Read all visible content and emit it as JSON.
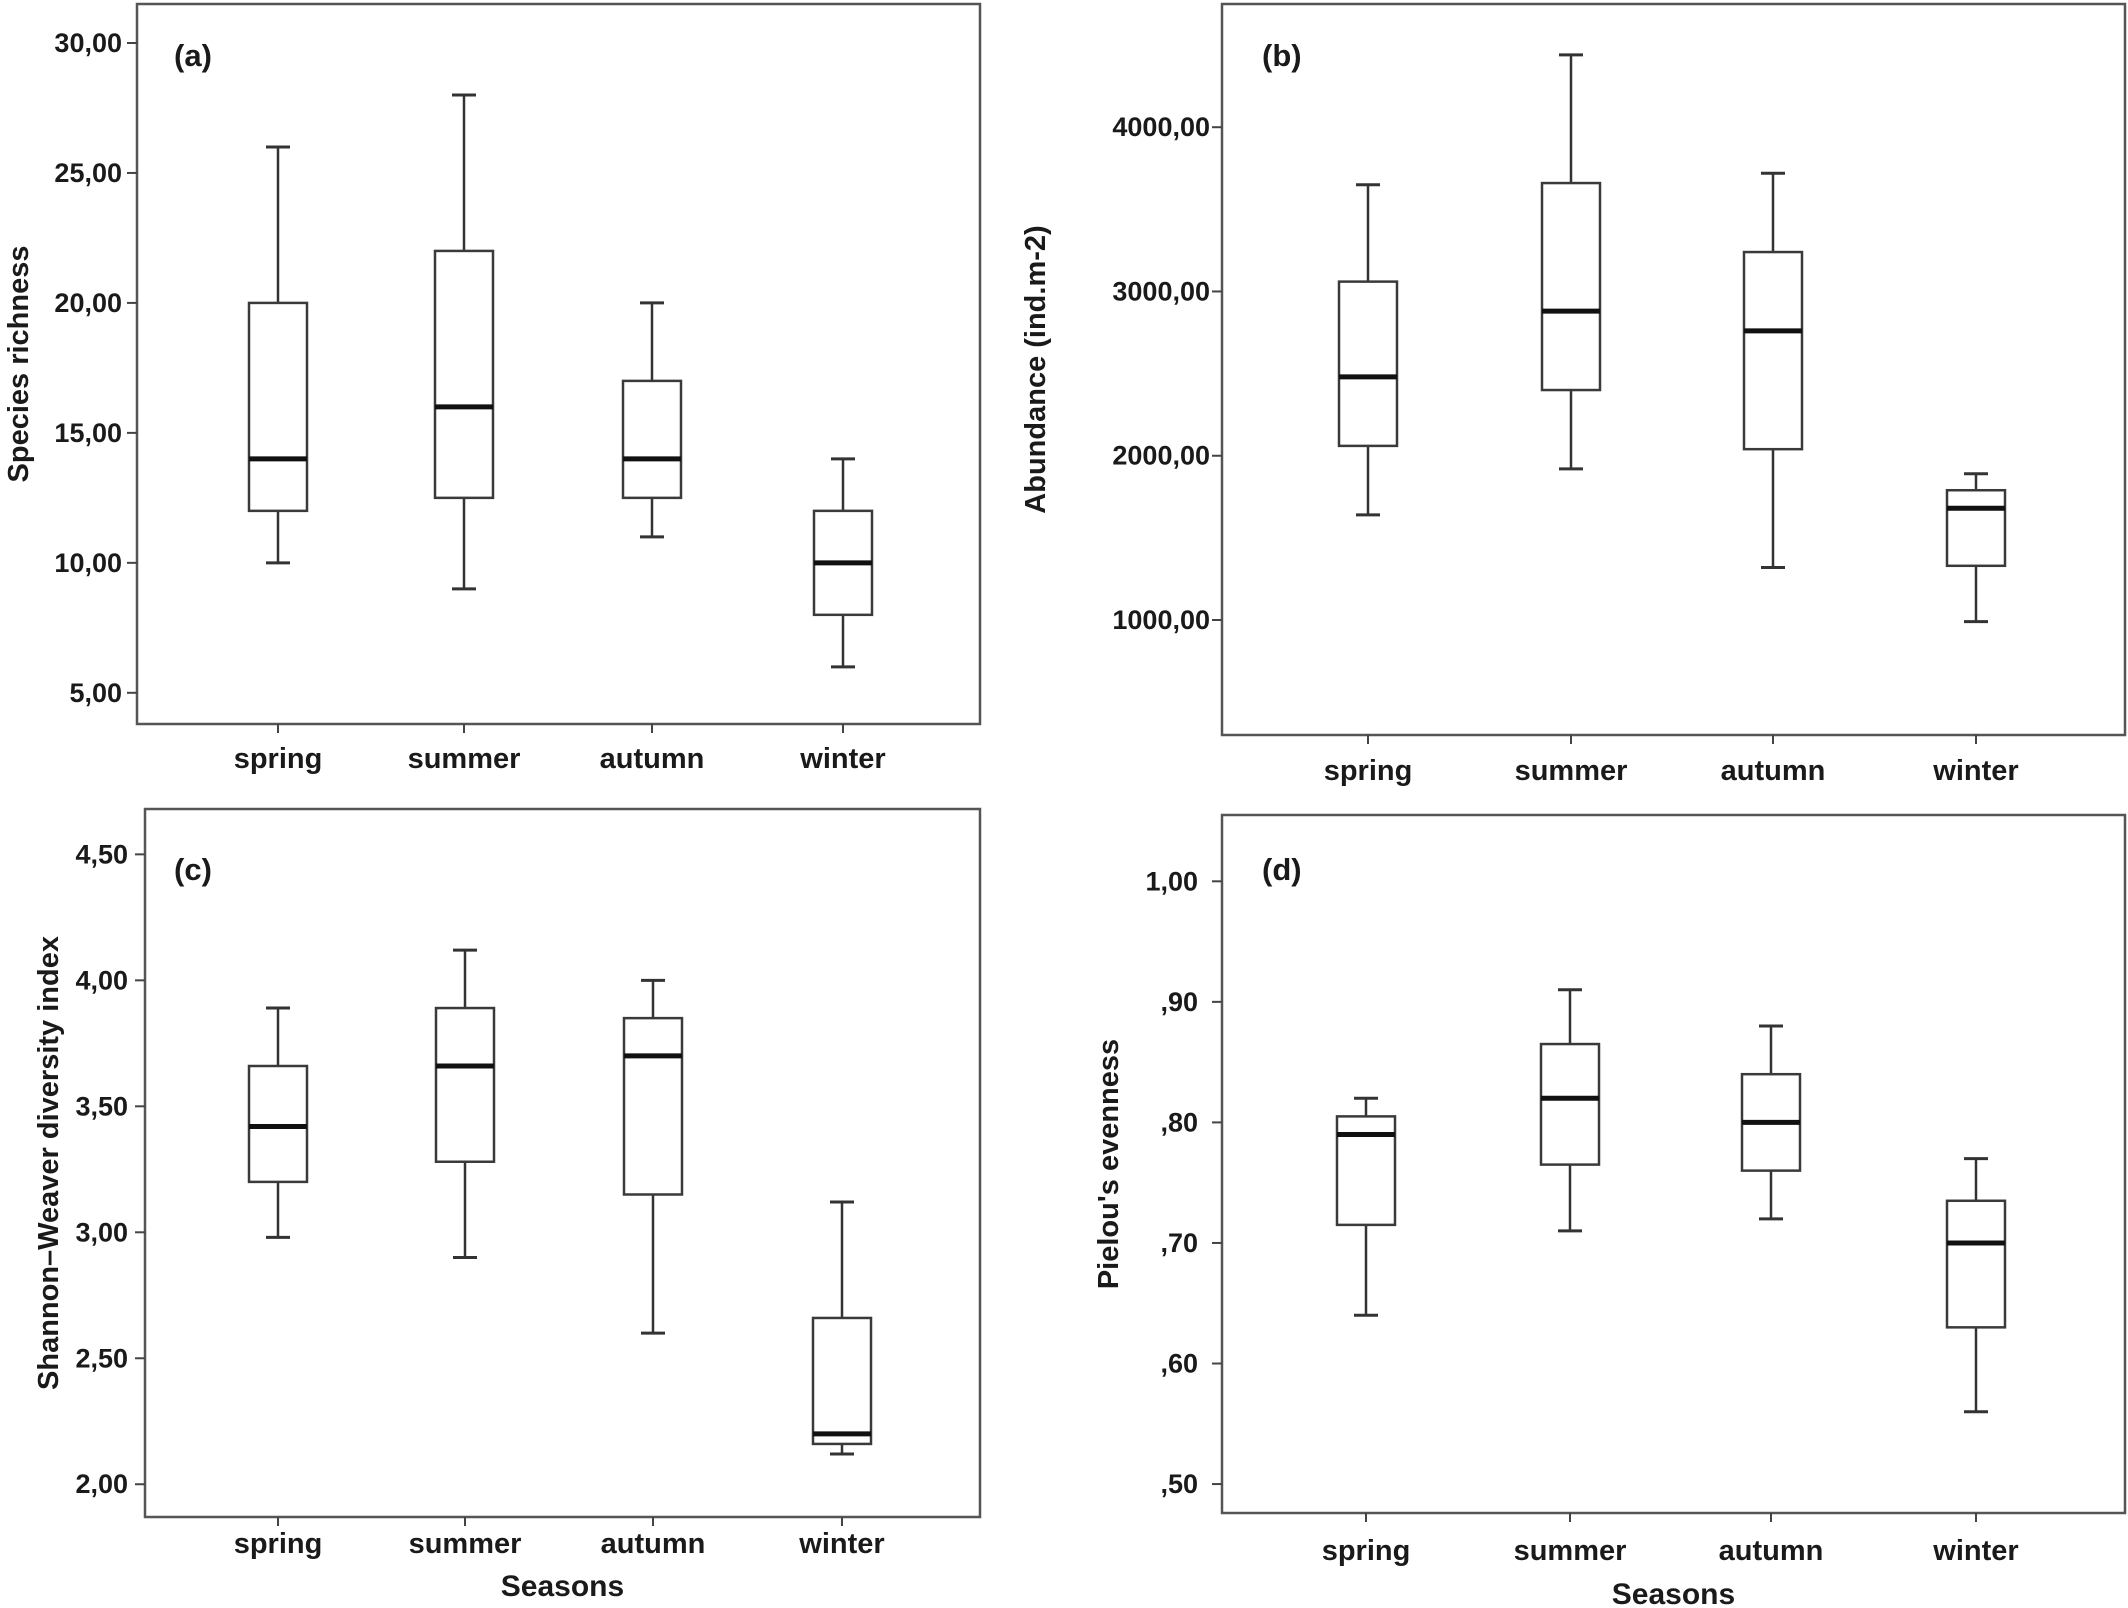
{
  "chart_data": [
    {
      "type": "box",
      "panel_label": "(a)",
      "ylabel": "Species richness",
      "xlabel": "",
      "categories": [
        "spring",
        "summer",
        "autumn",
        "winter"
      ],
      "ylim": [
        3.8,
        31.5
      ],
      "yticks": [
        {
          "value": 5,
          "label": "5,00"
        },
        {
          "value": 10,
          "label": "10,00"
        },
        {
          "value": 15,
          "label": "15,00"
        },
        {
          "value": 20,
          "label": "20,00"
        },
        {
          "value": 25,
          "label": "25,00"
        },
        {
          "value": 30,
          "label": "30,00"
        }
      ],
      "boxes": [
        {
          "min": 10,
          "q1": 12,
          "median": 14,
          "q3": 20,
          "max": 26
        },
        {
          "min": 9,
          "q1": 12.5,
          "median": 16,
          "q3": 22,
          "max": 28
        },
        {
          "min": 11,
          "q1": 12.5,
          "median": 14,
          "q3": 17,
          "max": 20
        },
        {
          "min": 6,
          "q1": 8,
          "median": 10,
          "q3": 12,
          "max": 14
        }
      ]
    },
    {
      "type": "box",
      "panel_label": "(b)",
      "ylabel": "Abundance (ind.m-2)",
      "xlabel": "",
      "categories": [
        "spring",
        "summer",
        "autumn",
        "winter"
      ],
      "ylim": [
        300,
        4750
      ],
      "yticks": [
        {
          "value": 1000,
          "label": "1000,00"
        },
        {
          "value": 2000,
          "label": "2000,00"
        },
        {
          "value": 3000,
          "label": "3000,00"
        },
        {
          "value": 4000,
          "label": "4000,00"
        }
      ],
      "boxes": [
        {
          "min": 1640,
          "q1": 2060,
          "median": 2480,
          "q3": 3060,
          "max": 3650
        },
        {
          "min": 1920,
          "q1": 2400,
          "median": 2880,
          "q3": 3660,
          "max": 4440
        },
        {
          "min": 1320,
          "q1": 2040,
          "median": 2760,
          "q3": 3240,
          "max": 3720
        },
        {
          "min": 990,
          "q1": 1330,
          "median": 1680,
          "q3": 1790,
          "max": 1890
        }
      ]
    },
    {
      "type": "box",
      "panel_label": "(c)",
      "ylabel": "Shannon–Weaver diversity index",
      "xlabel": "Seasons",
      "categories": [
        "spring",
        "summer",
        "autumn",
        "winter"
      ],
      "ylim": [
        1.87,
        4.68
      ],
      "yticks": [
        {
          "value": 2.0,
          "label": "2,00"
        },
        {
          "value": 2.5,
          "label": "2,50"
        },
        {
          "value": 3.0,
          "label": "3,00"
        },
        {
          "value": 3.5,
          "label": "3,50"
        },
        {
          "value": 4.0,
          "label": "4,00"
        },
        {
          "value": 4.5,
          "label": "4,50"
        }
      ],
      "boxes": [
        {
          "min": 2.98,
          "q1": 3.2,
          "median": 3.42,
          "q3": 3.66,
          "max": 3.89
        },
        {
          "min": 2.9,
          "q1": 3.28,
          "median": 3.66,
          "q3": 3.89,
          "max": 4.12
        },
        {
          "min": 2.6,
          "q1": 3.15,
          "median": 3.7,
          "q3": 3.85,
          "max": 4.0
        },
        {
          "min": 2.12,
          "q1": 2.16,
          "median": 2.2,
          "q3": 2.66,
          "max": 3.12
        }
      ]
    },
    {
      "type": "box",
      "panel_label": "(d)",
      "ylabel": "Pielou's evenness",
      "xlabel": "Seasons",
      "categories": [
        "spring",
        "summer",
        "autumn",
        "winter"
      ],
      "ylim": [
        0.476,
        1.055
      ],
      "yticks": [
        {
          "value": 0.5,
          "label": ",50"
        },
        {
          "value": 0.6,
          "label": ",60"
        },
        {
          "value": 0.7,
          "label": ",70"
        },
        {
          "value": 0.8,
          "label": ",80"
        },
        {
          "value": 0.9,
          "label": ",90"
        },
        {
          "value": 1.0,
          "label": "1,00"
        }
      ],
      "boxes": [
        {
          "min": 0.64,
          "q1": 0.715,
          "median": 0.79,
          "q3": 0.805,
          "max": 0.82
        },
        {
          "min": 0.71,
          "q1": 0.765,
          "median": 0.82,
          "q3": 0.865,
          "max": 0.91
        },
        {
          "min": 0.72,
          "q1": 0.76,
          "median": 0.8,
          "q3": 0.84,
          "max": 0.88
        },
        {
          "min": 0.56,
          "q1": 0.63,
          "median": 0.7,
          "q3": 0.735,
          "max": 0.77
        }
      ]
    }
  ]
}
